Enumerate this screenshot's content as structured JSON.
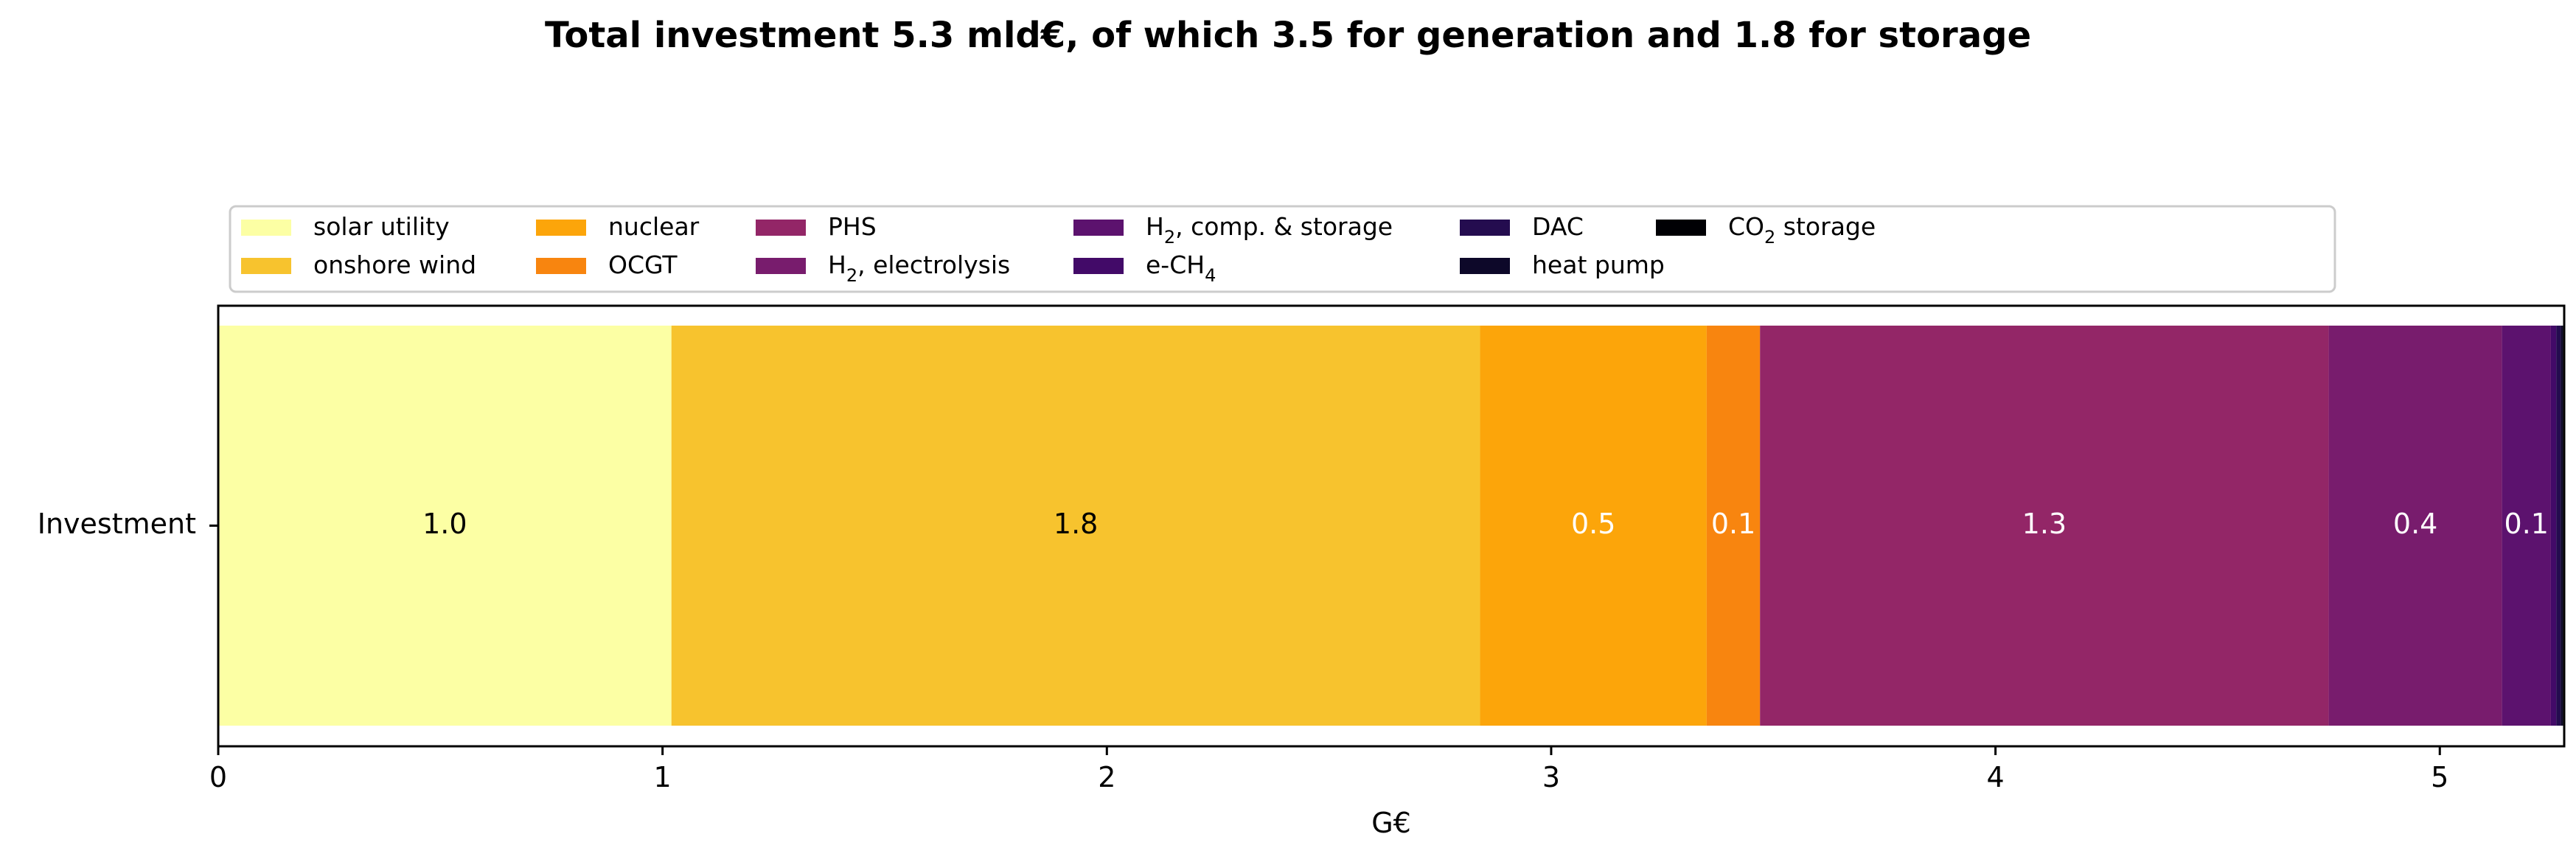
{
  "chart_data": {
    "type": "bar",
    "orientation": "horizontal",
    "stacked": true,
    "title": "Total investment 5.3 mld€, of which 3.5 for generation and 1.8 for storage",
    "categories": [
      "Investment"
    ],
    "xlabel": "G€",
    "ylabel": "",
    "xlim": [
      0,
      5.28
    ],
    "xticks": [
      0,
      1,
      2,
      3,
      4,
      5
    ],
    "grid": false,
    "legend_position": "top",
    "legend_columns": 8,
    "series": [
      {
        "name": "solar utility",
        "legend_main": "solar utility",
        "legend_sub": "",
        "legend_tail": "",
        "value": 1.02,
        "label": "1.0",
        "color": "#fcffa4",
        "label_color": "#000000"
      },
      {
        "name": "onshore wind",
        "legend_main": "onshore wind",
        "legend_sub": "",
        "legend_tail": "",
        "value": 1.82,
        "label": "1.8",
        "color": "#f7c32e",
        "label_color": "#000000"
      },
      {
        "name": "nuclear",
        "legend_main": "nuclear",
        "legend_sub": "",
        "legend_tail": "",
        "value": 0.51,
        "label": "0.5",
        "color": "#fca50a",
        "label_color": "#ffffff"
      },
      {
        "name": "OCGT",
        "legend_main": "OCGT",
        "legend_sub": "",
        "legend_tail": "",
        "value": 0.12,
        "label": "0.1",
        "color": "#f8850f",
        "label_color": "#ffffff"
      },
      {
        "name": "PHS",
        "legend_main": "PHS",
        "legend_sub": "",
        "legend_tail": "",
        "value": 1.28,
        "label": "1.3",
        "color": "#932667",
        "label_color": "#ffffff"
      },
      {
        "name": "H2, electrolysis",
        "legend_main": "H",
        "legend_sub": "2",
        "legend_tail": ", electrolysis",
        "value": 0.39,
        "label": "0.4",
        "color": "#781c6d",
        "label_color": "#ffffff"
      },
      {
        "name": "H2, comp. & storage",
        "legend_main": "H",
        "legend_sub": "2",
        "legend_tail": ", comp. & storage",
        "value": 0.11,
        "label": "0.1",
        "color": "#5c126e",
        "label_color": "#ffffff"
      },
      {
        "name": "e-CH4",
        "legend_main": "e-CH",
        "legend_sub": "4",
        "legend_tail": "",
        "value": 0.012,
        "label": "",
        "color": "#420a68",
        "label_color": "#ffffff"
      },
      {
        "name": "DAC",
        "legend_main": "DAC",
        "legend_sub": "",
        "legend_tail": "",
        "value": 0.01,
        "label": "",
        "color": "#240c4f",
        "label_color": "#ffffff"
      },
      {
        "name": "heat pump",
        "legend_main": "heat pump",
        "legend_sub": "",
        "legend_tail": "",
        "value": 0.005,
        "label": "",
        "color": "#0d0829",
        "label_color": "#ffffff"
      },
      {
        "name": "CO2 storage",
        "legend_main": "CO",
        "legend_sub": "2",
        "legend_tail": " storage",
        "value": 0.003,
        "label": "",
        "color": "#000004",
        "label_color": "#ffffff"
      }
    ]
  }
}
